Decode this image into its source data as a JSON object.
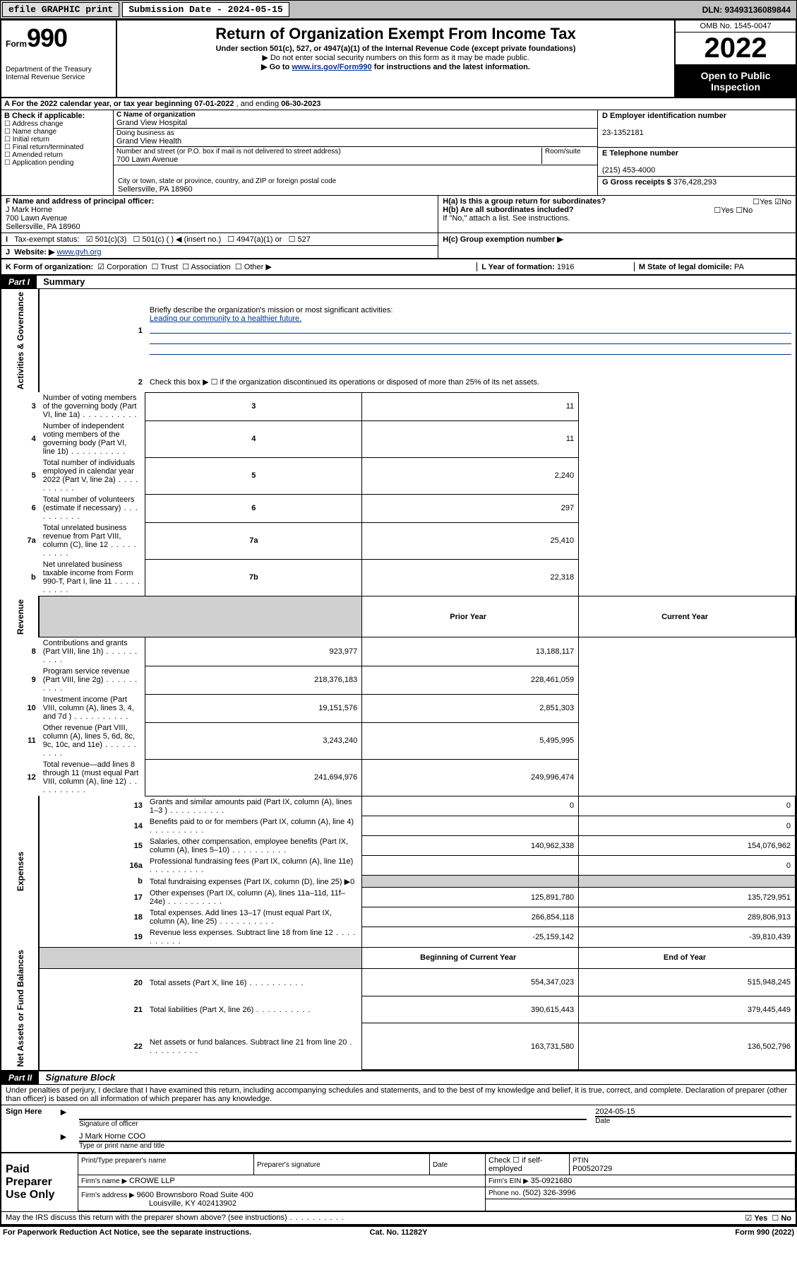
{
  "topbar": {
    "efile_label": "efile GRAPHIC print",
    "submission_label": "Submission Date - 2024-05-15",
    "dln_label": "DLN: 93493136089844"
  },
  "header": {
    "form_word": "Form",
    "form_num": "990",
    "dept": "Department of the Treasury",
    "irs": "Internal Revenue Service",
    "title": "Return of Organization Exempt From Income Tax",
    "sub1": "Under section 501(c), 527, or 4947(a)(1) of the Internal Revenue Code (except private foundations)",
    "sub2": "Do not enter social security numbers on this form as it may be made public.",
    "sub3_a": "Go to ",
    "sub3_link": "www.irs.gov/Form990",
    "sub3_b": " for instructions and the latest information.",
    "omb": "OMB No. 1545-0047",
    "year": "2022",
    "open": "Open to Public Inspection"
  },
  "A": {
    "label": "A For the 2022 calendar year, or tax year beginning ",
    "begin": "07-01-2022",
    "mid": " , and ending ",
    "end": "06-30-2023"
  },
  "B": {
    "label": "B Check if applicable:",
    "opts": [
      "Address change",
      "Name change",
      "Initial return",
      "Final return/terminated",
      "Amended return",
      "Application pending"
    ]
  },
  "C": {
    "name_label": "C Name of organization",
    "name": "Grand View Hospital",
    "dba_label": "Doing business as",
    "dba": "Grand View Health",
    "street_label": "Number and street (or P.O. box if mail is not delivered to street address)",
    "room_label": "Room/suite",
    "street": "700 Lawn Avenue",
    "city_label": "City or town, state or province, country, and ZIP or foreign postal code",
    "city": "Sellersville, PA  18960"
  },
  "D": {
    "label": "D Employer identification number",
    "value": "23-1352181"
  },
  "E": {
    "label": "E Telephone number",
    "value": "(215) 453-4000"
  },
  "G": {
    "label": "G Gross receipts $ ",
    "value": "376,428,293"
  },
  "F": {
    "label": "F Name and address of principal officer:",
    "name": "J Mark Horne",
    "addr1": "700 Lawn Avenue",
    "addr2": "Sellersville, PA  18960"
  },
  "H": {
    "a": "H(a)  Is this a group return for subordinates?",
    "b": "H(b)  Are all subordinates included?",
    "b2": "If \"No,\" attach a list. See instructions.",
    "c": "H(c)  Group exemption number ▶",
    "yes": "Yes",
    "no": "No"
  },
  "I": {
    "label": "Tax-exempt status:",
    "o1": "501(c)(3)",
    "o2": "501(c) (  ) ◀ (insert no.)",
    "o3": "4947(a)(1) or",
    "o4": "527"
  },
  "J": {
    "label": "Website: ▶ ",
    "url": "www.gvh.org"
  },
  "K": {
    "label": "K Form of organization:",
    "o1": "Corporation",
    "o2": "Trust",
    "o3": "Association",
    "o4": "Other ▶"
  },
  "L": {
    "label": "L Year of formation: ",
    "value": "1916"
  },
  "M": {
    "label": "M State of legal domicile: ",
    "value": "PA"
  },
  "parts": {
    "p1": "Part I",
    "p1_title": "Summary",
    "p2": "Part II",
    "p2_title": "Signature Block"
  },
  "sidelabels": {
    "act": "Activities & Governance",
    "rev": "Revenue",
    "exp": "Expenses",
    "net": "Net Assets or Fund Balances"
  },
  "summary": {
    "l1_label": "Briefly describe the organization's mission or most significant activities:",
    "l1_text": "Leading our community to a healthier future.",
    "l2_label": "Check this box ▶ ☐  if the organization discontinued its operations or disposed of more than 25% of its net assets.",
    "lines_act": [
      {
        "n": "3",
        "label": "Number of voting members of the governing body (Part VI, line 1a)",
        "box": "3",
        "val": "11"
      },
      {
        "n": "4",
        "label": "Number of independent voting members of the governing body (Part VI, line 1b)",
        "box": "4",
        "val": "11"
      },
      {
        "n": "5",
        "label": "Total number of individuals employed in calendar year 2022 (Part V, line 2a)",
        "box": "5",
        "val": "2,240"
      },
      {
        "n": "6",
        "label": "Total number of volunteers (estimate if necessary)",
        "box": "6",
        "val": "297"
      },
      {
        "n": "7a",
        "label": "Total unrelated business revenue from Part VIII, column (C), line 12",
        "box": "7a",
        "val": "25,410"
      },
      {
        "n": "b",
        "label": "Net unrelated business taxable income from Form 990-T, Part I, line 11",
        "box": "7b",
        "val": "22,318"
      }
    ],
    "hdr_prior": "Prior Year",
    "hdr_cur": "Current Year",
    "lines_rev": [
      {
        "n": "8",
        "label": "Contributions and grants (Part VIII, line 1h)",
        "p": "923,977",
        "c": "13,188,117"
      },
      {
        "n": "9",
        "label": "Program service revenue (Part VIII, line 2g)",
        "p": "218,376,183",
        "c": "228,461,059"
      },
      {
        "n": "10",
        "label": "Investment income (Part VIII, column (A), lines 3, 4, and 7d )",
        "p": "19,151,576",
        "c": "2,851,303"
      },
      {
        "n": "11",
        "label": "Other revenue (Part VIII, column (A), lines 5, 6d, 8c, 9c, 10c, and 11e)",
        "p": "3,243,240",
        "c": "5,495,995"
      },
      {
        "n": "12",
        "label": "Total revenue—add lines 8 through 11 (must equal Part VIII, column (A), line 12)",
        "p": "241,694,976",
        "c": "249,996,474"
      }
    ],
    "lines_exp": [
      {
        "n": "13",
        "label": "Grants and similar amounts paid (Part IX, column (A), lines 1–3 )",
        "p": "0",
        "c": "0"
      },
      {
        "n": "14",
        "label": "Benefits paid to or for members (Part IX, column (A), line 4)",
        "p": "",
        "c": "0"
      },
      {
        "n": "15",
        "label": "Salaries, other compensation, employee benefits (Part IX, column (A), lines 5–10)",
        "p": "140,962,338",
        "c": "154,076,962"
      },
      {
        "n": "16a",
        "label": "Professional fundraising fees (Part IX, column (A), line 11e)",
        "p": "",
        "c": "0"
      },
      {
        "n": "b",
        "label": "Total fundraising expenses (Part IX, column (D), line 25) ▶0",
        "p": "SHADE",
        "c": "SHADE"
      },
      {
        "n": "17",
        "label": "Other expenses (Part IX, column (A), lines 11a–11d, 11f–24e)",
        "p": "125,891,780",
        "c": "135,729,951"
      },
      {
        "n": "18",
        "label": "Total expenses. Add lines 13–17 (must equal Part IX, column (A), line 25)",
        "p": "266,854,118",
        "c": "289,806,913"
      },
      {
        "n": "19",
        "label": "Revenue less expenses. Subtract line 18 from line 12",
        "p": "-25,159,142",
        "c": "-39,810,439"
      }
    ],
    "hdr_beg": "Beginning of Current Year",
    "hdr_end": "End of Year",
    "lines_net": [
      {
        "n": "20",
        "label": "Total assets (Part X, line 16)",
        "p": "554,347,023",
        "c": "515,948,245"
      },
      {
        "n": "21",
        "label": "Total liabilities (Part X, line 26)",
        "p": "390,615,443",
        "c": "379,445,449"
      },
      {
        "n": "22",
        "label": "Net assets or fund balances. Subtract line 21 from line 20",
        "p": "163,731,580",
        "c": "136,502,796"
      }
    ]
  },
  "sig": {
    "decl": "Under penalties of perjury, I declare that I have examined this return, including accompanying schedules and statements, and to the best of my knowledge and belief, it is true, correct, and complete. Declaration of preparer (other than officer) is based on all information of which preparer has any knowledge.",
    "sign_here": "Sign Here",
    "sig_officer": "Signature of officer",
    "date_label": "Date",
    "date_val": "2024-05-15",
    "name_title": "J Mark Horne  COO",
    "type_label": "Type or print name and title"
  },
  "prep": {
    "side": "Paid Preparer Use Only",
    "h1": "Print/Type preparer's name",
    "h2": "Preparer's signature",
    "h3": "Date",
    "h4a": "Check ☐ if self-employed",
    "h5": "PTIN",
    "ptin": "P00520729",
    "firm_label": "Firm's name   ▶ ",
    "firm": "CROWE LLP",
    "ein_label": "Firm's EIN ▶ ",
    "ein": "35-0921680",
    "addr_label": "Firm's address ▶ ",
    "addr1": "9600 Brownsboro Road Suite 400",
    "addr2": "Louisville, KY  402413902",
    "phone_label": "Phone no. ",
    "phone": "(502) 326-3996"
  },
  "footer": {
    "q": "May the IRS discuss this return with the preparer shown above? (see instructions)",
    "yes": "Yes",
    "no": "No",
    "pra": "For Paperwork Reduction Act Notice, see the separate instructions.",
    "cat": "Cat. No. 11282Y",
    "form": "Form 990 (2022)"
  }
}
